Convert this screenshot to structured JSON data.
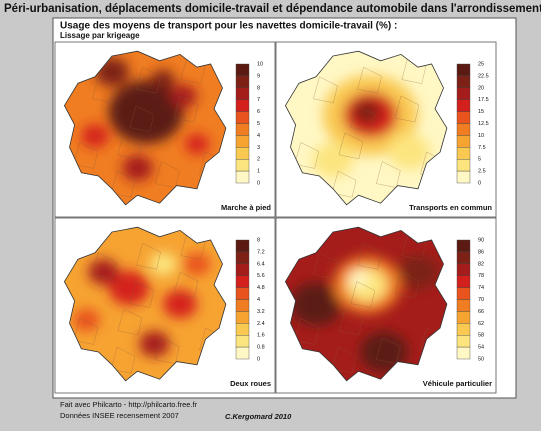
{
  "title": "Péri-urbanisation, déplacements domicile-travail et dépendance automobile dans l'arrondissement de Lille",
  "subtitle": "Usage des moyens de transport pour les navettes domicile-travail (%) :",
  "method": "Lissage par krigeage",
  "panels": [
    {
      "label": "Marche à pied",
      "legend": [
        10,
        9,
        8,
        7,
        6,
        5,
        4,
        3,
        2,
        1,
        0
      ]
    },
    {
      "label": "Transports en commun",
      "legend": [
        25,
        22.5,
        20,
        17.5,
        15,
        12.5,
        10,
        7.5,
        5,
        2.5,
        0
      ]
    },
    {
      "label": "Deux roues",
      "legend": [
        8,
        7.2,
        6.4,
        5.6,
        4.8,
        4,
        3.2,
        2.4,
        1.6,
        0.8,
        0
      ]
    },
    {
      "label": "Véhicule particulier",
      "legend": [
        90,
        86,
        82,
        78,
        74,
        70,
        66,
        62,
        58,
        54,
        50
      ]
    }
  ],
  "footer": {
    "software": "Fait avec Philcarto - http://philcarto.free.fr",
    "source": "Données INSEE recensement 2007",
    "author": "C.Kergomard  2010"
  }
}
